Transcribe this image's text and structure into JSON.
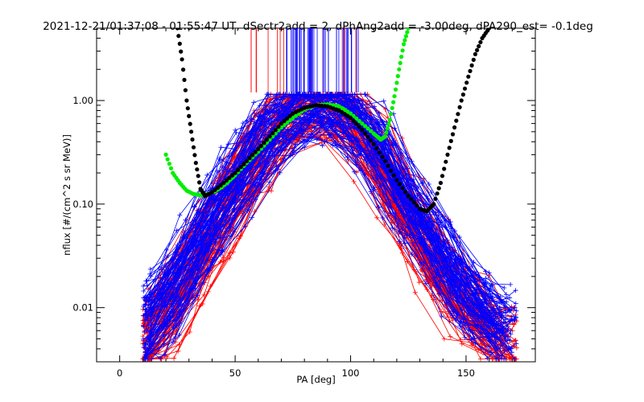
{
  "chart_data": {
    "type": "scatter",
    "title": "2021-12-21/01:37:08 - 01:55:47 UT, dSectr2add = 2, dPhAng2add = -3.00deg, dPA290_est=  -0.1deg",
    "xlabel": "PA [deg]",
    "ylabel": "nflux [#/(cm^2 s sr MeV)]",
    "xscale": "linear",
    "yscale": "log",
    "xlim": [
      -10,
      180
    ],
    "ylim": [
      0.003,
      5.0
    ],
    "x_ticks": [
      0,
      50,
      100,
      150
    ],
    "x_tick_labels": [
      "0",
      "50",
      "100",
      "150"
    ],
    "y_ticks": [
      0.01,
      0.1,
      1.0
    ],
    "y_tick_labels": [
      "0.01",
      "0.10",
      "1.00"
    ],
    "grid": false,
    "colors": {
      "red_traces": "#ff0000",
      "blue_traces": "#0000ff",
      "green_fit": "#00ee00",
      "black_fit": "#000000",
      "axes": "#000000"
    },
    "series": [
      {
        "color": "red",
        "description_type": "traces",
        "envelope_pa": [
          10,
          20,
          30,
          40,
          50,
          60,
          70,
          80,
          90,
          100,
          110,
          120,
          130,
          140,
          150,
          160,
          170
        ],
        "typical_flux": [
          0.004,
          0.008,
          0.02,
          0.05,
          0.12,
          0.3,
          0.6,
          0.85,
          0.9,
          0.7,
          0.35,
          0.12,
          0.05,
          0.02,
          0.01,
          0.006,
          0.004
        ]
      },
      {
        "color": "blue",
        "description_type": "traces",
        "envelope_pa": [
          10,
          20,
          30,
          40,
          50,
          60,
          70,
          80,
          90,
          100,
          110,
          120,
          130,
          140,
          150,
          160,
          170
        ],
        "typical_flux": [
          0.006,
          0.012,
          0.03,
          0.07,
          0.16,
          0.35,
          0.65,
          0.88,
          0.92,
          0.72,
          0.4,
          0.16,
          0.07,
          0.03,
          0.014,
          0.008,
          0.006
        ]
      },
      {
        "color": "green",
        "description_type": "fit",
        "x": [
          20,
          23,
          26,
          29,
          32,
          35,
          38,
          41,
          44,
          47,
          50,
          55,
          60,
          65,
          70,
          75,
          80,
          85,
          90,
          95,
          100,
          105,
          110,
          113,
          115,
          117,
          119,
          121,
          123,
          125
        ],
        "y": [
          0.3,
          0.2,
          0.16,
          0.135,
          0.125,
          0.122,
          0.125,
          0.132,
          0.145,
          0.165,
          0.19,
          0.25,
          0.32,
          0.42,
          0.55,
          0.68,
          0.82,
          0.9,
          0.92,
          0.88,
          0.75,
          0.6,
          0.48,
          0.42,
          0.45,
          0.65,
          1.1,
          2.0,
          3.5,
          5.0
        ]
      },
      {
        "color": "black",
        "description_type": "fit",
        "x": [
          25,
          27,
          29,
          31,
          33,
          35,
          37,
          40,
          45,
          50,
          55,
          60,
          65,
          70,
          75,
          80,
          85,
          90,
          95,
          100,
          105,
          110,
          115,
          120,
          125,
          130,
          133,
          136,
          139,
          142,
          145,
          148,
          151,
          154,
          157,
          160
        ],
        "y": [
          5.0,
          2.5,
          1.0,
          0.5,
          0.25,
          0.14,
          0.12,
          0.13,
          0.16,
          0.2,
          0.26,
          0.34,
          0.45,
          0.6,
          0.75,
          0.85,
          0.9,
          0.88,
          0.8,
          0.68,
          0.52,
          0.38,
          0.26,
          0.17,
          0.12,
          0.09,
          0.085,
          0.1,
          0.16,
          0.3,
          0.55,
          1.0,
          1.7,
          2.8,
          4.0,
          5.0
        ]
      }
    ]
  }
}
